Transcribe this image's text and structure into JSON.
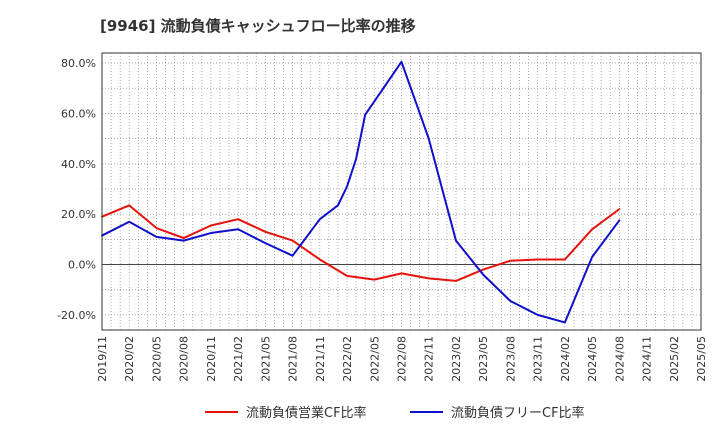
{
  "chart_data": {
    "type": "line",
    "title": "[9946]  流動負債キャッシュフロー比率の推移",
    "x_ticks": [
      "2019/11",
      "2020/02",
      "2020/05",
      "2020/08",
      "2020/11",
      "2021/02",
      "2021/05",
      "2021/08",
      "2021/11",
      "2022/02",
      "2022/05",
      "2022/08",
      "2022/11",
      "2023/02",
      "2023/05",
      "2023/08",
      "2023/11",
      "2024/02",
      "2024/05",
      "2024/08",
      "2024/11",
      "2025/02",
      "2025/05"
    ],
    "y_ticks": [
      80,
      60,
      40,
      20,
      0,
      -20
    ],
    "y_tick_labels": [
      "80.0%",
      "60.0%",
      "40.0%",
      "20.0%",
      "0.0%",
      "-20.0%"
    ],
    "ylim": [
      -26,
      84
    ],
    "grid": true,
    "legend_position": "bottom",
    "series": [
      {
        "name": "流動負債営業CF比率",
        "color": "#e8120c",
        "points": [
          [
            "2019/11",
            19.0
          ],
          [
            "2020/02",
            23.5
          ],
          [
            "2020/05",
            14.5
          ],
          [
            "2020/08",
            10.5
          ],
          [
            "2020/11",
            15.5
          ],
          [
            "2021/02",
            18.0
          ],
          [
            "2021/05",
            13.0
          ],
          [
            "2021/08",
            9.5
          ],
          [
            "2021/11",
            2.0
          ],
          [
            "2022/02",
            -4.5
          ],
          [
            "2022/05",
            -6.0
          ],
          [
            "2022/08",
            -3.5
          ],
          [
            "2022/11",
            -5.5
          ],
          [
            "2023/02",
            -6.5
          ],
          [
            "2023/05",
            -2.0
          ],
          [
            "2023/08",
            1.5
          ],
          [
            "2023/11",
            2.0
          ],
          [
            "2024/02",
            2.0
          ],
          [
            "2024/05",
            14.0
          ],
          [
            "2024/08",
            22.0
          ]
        ]
      },
      {
        "name": "流動負債フリーCF比率",
        "color": "#1010cc",
        "points": [
          [
            "2019/11",
            11.5
          ],
          [
            "2020/02",
            17.0
          ],
          [
            "2020/05",
            11.0
          ],
          [
            "2020/08",
            9.5
          ],
          [
            "2020/11",
            12.5
          ],
          [
            "2021/02",
            14.0
          ],
          [
            "2021/05",
            8.5
          ],
          [
            "2021/08",
            3.5
          ],
          [
            "2021/11",
            18.0
          ],
          [
            "2022/01",
            23.5
          ],
          [
            "2022/02",
            31.0
          ],
          [
            "2022/03",
            42.0
          ],
          [
            "2022/04",
            59.5
          ],
          [
            "2022/08",
            80.5
          ],
          [
            "2022/11",
            50.0
          ],
          [
            "2023/02",
            9.5
          ],
          [
            "2023/05",
            -4.0
          ],
          [
            "2023/08",
            -14.5
          ],
          [
            "2023/11",
            -20.0
          ],
          [
            "2024/02",
            -23.0
          ],
          [
            "2024/05",
            3.0
          ],
          [
            "2024/08",
            17.5
          ]
        ]
      }
    ]
  }
}
